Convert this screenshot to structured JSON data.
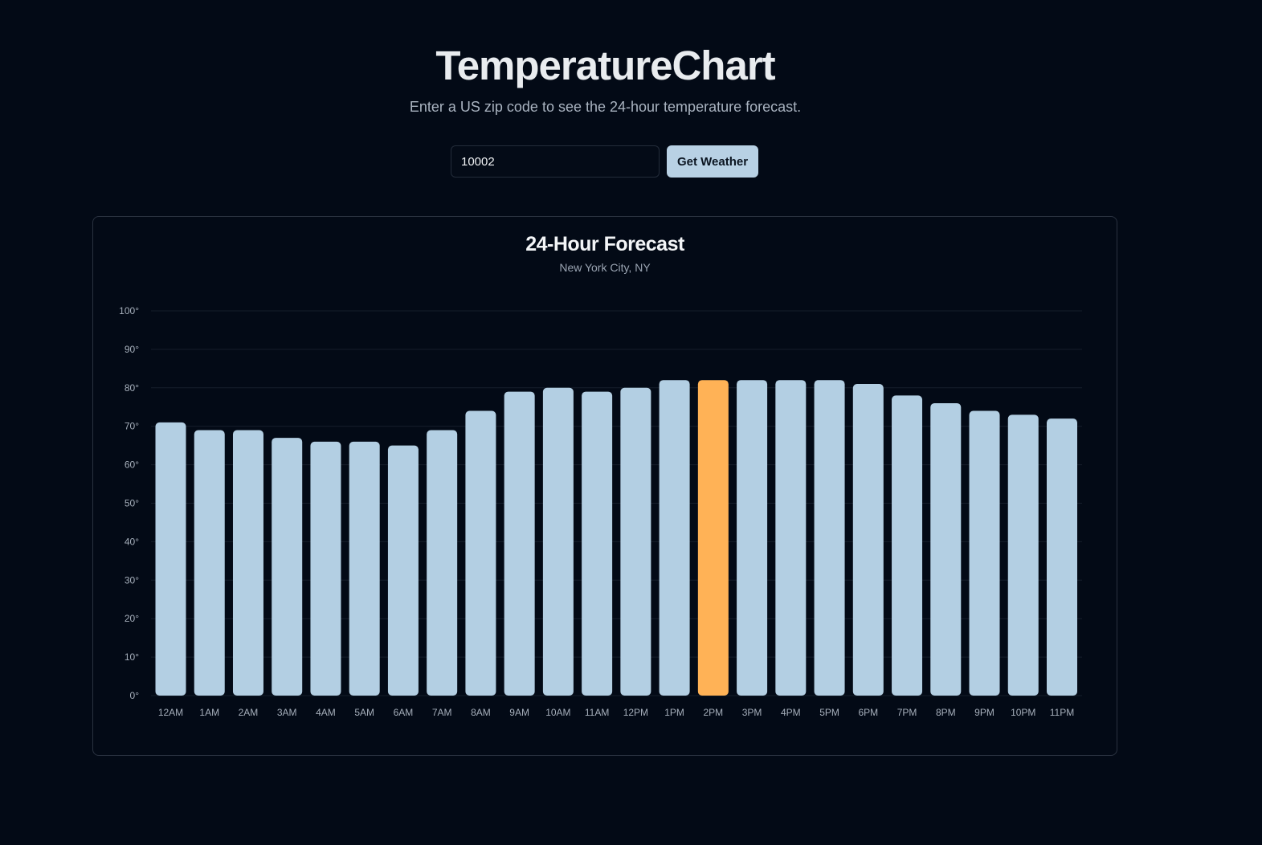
{
  "header": {
    "title": "TemperatureChart",
    "subtitle": "Enter a US zip code to see the 24-hour temperature forecast."
  },
  "search": {
    "zip_value": "10002",
    "button_label": "Get Weather"
  },
  "chart_card": {
    "title": "24-Hour Forecast",
    "location": "New York City, NY"
  },
  "colors": {
    "bar": "#b3cfe3",
    "highlight_bar": "#ffb256",
    "grid": "#161e2b"
  },
  "chart_data": {
    "type": "bar",
    "title": "24-Hour Forecast",
    "subtitle": "New York City, NY",
    "categories": [
      "12AM",
      "1AM",
      "2AM",
      "3AM",
      "4AM",
      "5AM",
      "6AM",
      "7AM",
      "8AM",
      "9AM",
      "10AM",
      "11AM",
      "12PM",
      "1PM",
      "2PM",
      "3PM",
      "4PM",
      "5PM",
      "6PM",
      "7PM",
      "8PM",
      "9PM",
      "10PM",
      "11PM"
    ],
    "values": [
      71,
      69,
      69,
      67,
      66,
      66,
      65,
      69,
      74,
      79,
      80,
      79,
      80,
      82,
      82,
      82,
      82,
      82,
      81,
      78,
      76,
      74,
      73,
      72
    ],
    "highlighted_category": "2PM",
    "ylim": [
      0,
      100
    ],
    "yticks": [
      0,
      10,
      20,
      30,
      40,
      50,
      60,
      70,
      80,
      90,
      100
    ],
    "ytick_suffix": "°",
    "grid": true,
    "legend": "none"
  }
}
